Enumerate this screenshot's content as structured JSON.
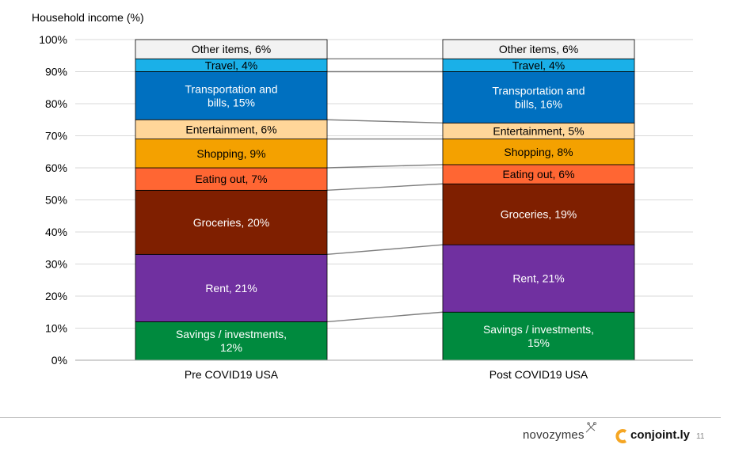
{
  "chart_data": {
    "type": "bar",
    "stacked": true,
    "percent_stacked": true,
    "ylabel": "Household income (%)",
    "yticks": [
      "0%",
      "10%",
      "20%",
      "30%",
      "40%",
      "50%",
      "60%",
      "70%",
      "80%",
      "90%",
      "100%"
    ],
    "ylim": [
      0,
      100
    ],
    "grid": true,
    "legend": "none (labels inside segments)",
    "categories": [
      "Pre COVID19 USA",
      "Post COVID19 USA"
    ],
    "series": [
      {
        "name": "Savings / investments",
        "values": [
          12,
          15
        ],
        "labels": [
          "Savings / investments,\n12%",
          "Savings / investments,\n15%"
        ],
        "color": "#008a3e",
        "text_color": "#ffffff"
      },
      {
        "name": "Rent",
        "values": [
          21,
          21
        ],
        "labels": [
          "Rent, 21%",
          "Rent, 21%"
        ],
        "color": "#7030a0",
        "text_color": "#ffffff"
      },
      {
        "name": "Groceries",
        "values": [
          20,
          19
        ],
        "labels": [
          "Groceries, 20%",
          "Groceries, 19%"
        ],
        "color": "#7f1f00",
        "text_color": "#ffffff"
      },
      {
        "name": "Eating out",
        "values": [
          7,
          6
        ],
        "labels": [
          "Eating out, 7%",
          "Eating out, 6%"
        ],
        "color": "#ff6633",
        "text_color": "#000000"
      },
      {
        "name": "Shopping",
        "values": [
          9,
          8
        ],
        "labels": [
          "Shopping, 9%",
          "Shopping, 8%"
        ],
        "color": "#f4a100",
        "text_color": "#000000"
      },
      {
        "name": "Entertainment",
        "values": [
          6,
          5
        ],
        "labels": [
          "Entertainment, 6%",
          "Entertainment, 5%"
        ],
        "color": "#ffd699",
        "text_color": "#000000"
      },
      {
        "name": "Transportation and bills",
        "values": [
          15,
          16
        ],
        "labels": [
          "Transportation and\nbills, 15%",
          "Transportation and\nbills, 16%"
        ],
        "color": "#0070c0",
        "text_color": "#ffffff"
      },
      {
        "name": "Travel",
        "values": [
          4,
          4
        ],
        "labels": [
          "Travel, 4%",
          "Travel, 4%"
        ],
        "color": "#1ab0e8",
        "text_color": "#000000"
      },
      {
        "name": "Other items",
        "values": [
          6,
          6
        ],
        "labels": [
          "Other items, 6%",
          "Other items, 6%"
        ],
        "color": "#f2f2f2",
        "text_color": "#000000"
      }
    ],
    "series_lines": true
  },
  "footer": {
    "brand_left": "novozymes",
    "brand_right": "conjoint.ly",
    "page_number": "11",
    "logo_colors": {
      "conjointly_mark": "#f5a623"
    }
  }
}
